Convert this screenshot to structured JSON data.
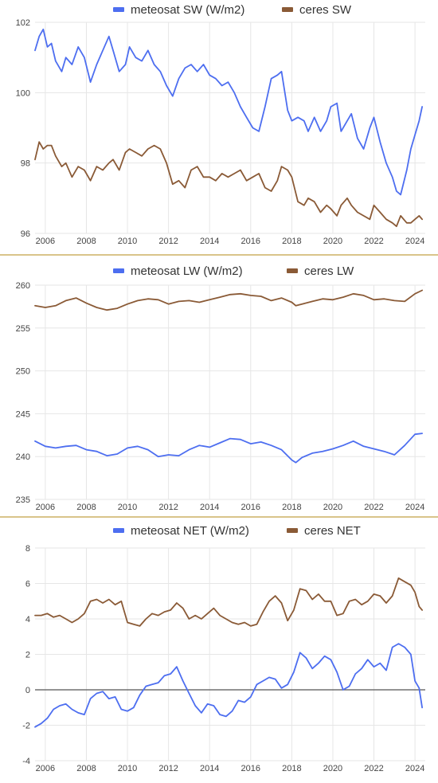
{
  "colors": {
    "meteosat": "#4d6ef0",
    "ceres": "#8a5a36",
    "grid": "#e6e6e6",
    "zero": "#555555",
    "divider": "#d9c48a"
  },
  "chart_data": [
    {
      "type": "line",
      "legend_position": "top",
      "grid": true,
      "xlim": [
        2005.5,
        2024.5
      ],
      "ylim": [
        96,
        102
      ],
      "xticks": [
        "2006",
        "2008",
        "2010",
        "2012",
        "2014",
        "2016",
        "2018",
        "2020",
        "2022",
        "2024"
      ],
      "xtick_values": [
        2006,
        2008,
        2010,
        2012,
        2014,
        2016,
        2018,
        2020,
        2022,
        2024
      ],
      "yticks": [
        "96",
        "98",
        "100",
        "102"
      ],
      "ytick_values": [
        96,
        98,
        100,
        102
      ],
      "series": [
        {
          "name": "meteosat SW (W/m2)",
          "color": "#4d6ef0",
          "x": [
            2005.5,
            2005.7,
            2005.9,
            2006.1,
            2006.3,
            2006.5,
            2006.8,
            2007.0,
            2007.3,
            2007.6,
            2007.9,
            2008.2,
            2008.5,
            2008.8,
            2009.1,
            2009.3,
            2009.6,
            2009.9,
            2010.1,
            2010.4,
            2010.7,
            2011.0,
            2011.3,
            2011.6,
            2011.9,
            2012.2,
            2012.5,
            2012.8,
            2013.1,
            2013.4,
            2013.7,
            2014.0,
            2014.3,
            2014.6,
            2014.9,
            2015.2,
            2015.5,
            2015.8,
            2016.1,
            2016.4,
            2016.7,
            2017.0,
            2017.3,
            2017.5,
            2017.8,
            2018.0,
            2018.3,
            2018.6,
            2018.8,
            2019.1,
            2019.4,
            2019.7,
            2019.9,
            2020.2,
            2020.4,
            2020.7,
            2020.9,
            2021.2,
            2021.5,
            2021.8,
            2022.0,
            2022.3,
            2022.6,
            2022.9,
            2023.1,
            2023.3,
            2023.6,
            2023.8,
            2024.0,
            2024.2,
            2024.35
          ],
          "y": [
            101.2,
            101.6,
            101.8,
            101.3,
            101.4,
            100.9,
            100.6,
            101.0,
            100.8,
            101.3,
            101.0,
            100.3,
            100.8,
            101.2,
            101.6,
            101.2,
            100.6,
            100.8,
            101.3,
            101.0,
            100.9,
            101.2,
            100.8,
            100.6,
            100.2,
            99.9,
            100.4,
            100.7,
            100.8,
            100.6,
            100.8,
            100.5,
            100.4,
            100.2,
            100.3,
            100.0,
            99.6,
            99.3,
            99.0,
            98.9,
            99.6,
            100.4,
            100.5,
            100.6,
            99.5,
            99.2,
            99.3,
            99.2,
            98.9,
            99.3,
            98.9,
            99.2,
            99.6,
            99.7,
            98.9,
            99.2,
            99.4,
            98.7,
            98.4,
            99.0,
            99.3,
            98.6,
            98.0,
            97.6,
            97.2,
            97.1,
            97.8,
            98.4,
            98.8,
            99.2,
            99.6
          ]
        },
        {
          "name": "ceres SW",
          "color": "#8a5a36",
          "x": [
            2005.5,
            2005.7,
            2005.9,
            2006.1,
            2006.3,
            2006.5,
            2006.8,
            2007.0,
            2007.3,
            2007.6,
            2007.9,
            2008.2,
            2008.5,
            2008.8,
            2009.1,
            2009.3,
            2009.6,
            2009.9,
            2010.1,
            2010.4,
            2010.7,
            2011.0,
            2011.3,
            2011.6,
            2011.9,
            2012.2,
            2012.5,
            2012.8,
            2013.1,
            2013.4,
            2013.7,
            2014.0,
            2014.3,
            2014.6,
            2014.9,
            2015.2,
            2015.5,
            2015.8,
            2016.1,
            2016.4,
            2016.7,
            2017.0,
            2017.3,
            2017.5,
            2017.8,
            2018.0,
            2018.3,
            2018.6,
            2018.8,
            2019.1,
            2019.4,
            2019.7,
            2019.9,
            2020.2,
            2020.4,
            2020.7,
            2020.9,
            2021.2,
            2021.5,
            2021.8,
            2022.0,
            2022.3,
            2022.6,
            2022.9,
            2023.1,
            2023.3,
            2023.6,
            2023.8,
            2024.0,
            2024.2,
            2024.35
          ],
          "y": [
            98.1,
            98.6,
            98.4,
            98.5,
            98.5,
            98.2,
            97.9,
            98.0,
            97.6,
            97.9,
            97.8,
            97.5,
            97.9,
            97.8,
            98.0,
            98.1,
            97.8,
            98.3,
            98.4,
            98.3,
            98.2,
            98.4,
            98.5,
            98.4,
            98.0,
            97.4,
            97.5,
            97.3,
            97.8,
            97.9,
            97.6,
            97.6,
            97.5,
            97.7,
            97.6,
            97.7,
            97.8,
            97.5,
            97.6,
            97.7,
            97.3,
            97.2,
            97.5,
            97.9,
            97.8,
            97.6,
            96.9,
            96.8,
            97.0,
            96.9,
            96.6,
            96.8,
            96.7,
            96.5,
            96.8,
            97.0,
            96.8,
            96.6,
            96.5,
            96.4,
            96.8,
            96.6,
            96.4,
            96.3,
            96.2,
            96.5,
            96.3,
            96.3,
            96.4,
            96.5,
            96.4
          ]
        }
      ]
    },
    {
      "type": "line",
      "legend_position": "top",
      "grid": true,
      "xlim": [
        2005.5,
        2024.5
      ],
      "ylim": [
        235,
        260
      ],
      "xticks": [
        "2006",
        "2008",
        "2010",
        "2012",
        "2014",
        "2016",
        "2018",
        "2020",
        "2022",
        "2024"
      ],
      "xtick_values": [
        2006,
        2008,
        2010,
        2012,
        2014,
        2016,
        2018,
        2020,
        2022,
        2024
      ],
      "yticks": [
        "235",
        "240",
        "245",
        "250",
        "255",
        "260"
      ],
      "ytick_values": [
        235,
        240,
        245,
        250,
        255,
        260
      ],
      "series": [
        {
          "name": "meteosat LW (W/m2)",
          "color": "#4d6ef0",
          "x": [
            2005.5,
            2006.0,
            2006.5,
            2007.0,
            2007.5,
            2008.0,
            2008.5,
            2009.0,
            2009.5,
            2010.0,
            2010.5,
            2011.0,
            2011.5,
            2012.0,
            2012.5,
            2013.0,
            2013.5,
            2014.0,
            2014.5,
            2015.0,
            2015.5,
            2016.0,
            2016.5,
            2017.0,
            2017.5,
            2018.0,
            2018.2,
            2018.5,
            2019.0,
            2019.5,
            2020.0,
            2020.5,
            2021.0,
            2021.5,
            2022.0,
            2022.5,
            2023.0,
            2023.5,
            2024.0,
            2024.35
          ],
          "y": [
            241.8,
            241.2,
            241.0,
            241.2,
            241.3,
            240.8,
            240.6,
            240.1,
            240.3,
            241.0,
            241.2,
            240.8,
            240.0,
            240.2,
            240.1,
            240.8,
            241.3,
            241.1,
            241.6,
            242.1,
            242.0,
            241.5,
            241.7,
            241.3,
            240.8,
            239.6,
            239.3,
            239.9,
            240.4,
            240.6,
            240.9,
            241.3,
            241.8,
            241.2,
            240.9,
            240.6,
            240.2,
            241.3,
            242.6,
            242.7
          ]
        },
        {
          "name": "ceres LW",
          "color": "#8a5a36",
          "x": [
            2005.5,
            2006.0,
            2006.5,
            2007.0,
            2007.5,
            2008.0,
            2008.5,
            2009.0,
            2009.5,
            2010.0,
            2010.5,
            2011.0,
            2011.5,
            2012.0,
            2012.5,
            2013.0,
            2013.5,
            2014.0,
            2014.5,
            2015.0,
            2015.5,
            2016.0,
            2016.5,
            2017.0,
            2017.5,
            2018.0,
            2018.2,
            2018.5,
            2019.0,
            2019.5,
            2020.0,
            2020.5,
            2021.0,
            2021.5,
            2022.0,
            2022.5,
            2023.0,
            2023.5,
            2024.0,
            2024.35
          ],
          "y": [
            257.6,
            257.4,
            257.6,
            258.2,
            258.5,
            257.9,
            257.4,
            257.1,
            257.3,
            257.8,
            258.2,
            258.4,
            258.3,
            257.8,
            258.1,
            258.2,
            258.0,
            258.3,
            258.6,
            258.9,
            259.0,
            258.8,
            258.7,
            258.2,
            258.5,
            258.0,
            257.6,
            257.8,
            258.1,
            258.4,
            258.3,
            258.6,
            259.0,
            258.8,
            258.3,
            258.4,
            258.2,
            258.1,
            259.0,
            259.4
          ]
        }
      ]
    },
    {
      "type": "line",
      "legend_position": "top",
      "grid": true,
      "zero_line": true,
      "xlim": [
        2005.5,
        2024.5
      ],
      "ylim": [
        -4,
        8
      ],
      "xticks": [
        "2006",
        "2008",
        "2010",
        "2012",
        "2014",
        "2016",
        "2018",
        "2020",
        "2022",
        "2024"
      ],
      "xtick_values": [
        2006,
        2008,
        2010,
        2012,
        2014,
        2016,
        2018,
        2020,
        2022,
        2024
      ],
      "yticks": [
        "-4",
        "-2",
        "0",
        "2",
        "4",
        "6",
        "8"
      ],
      "ytick_values": [
        -4,
        -2,
        0,
        2,
        4,
        6,
        8
      ],
      "series": [
        {
          "name": "meteosat NET (W/m2)",
          "color": "#4d6ef0",
          "x": [
            2005.5,
            2005.8,
            2006.1,
            2006.4,
            2006.7,
            2007.0,
            2007.3,
            2007.6,
            2007.9,
            2008.2,
            2008.5,
            2008.8,
            2009.1,
            2009.4,
            2009.7,
            2010.0,
            2010.3,
            2010.6,
            2010.9,
            2011.2,
            2011.5,
            2011.8,
            2012.1,
            2012.4,
            2012.7,
            2013.0,
            2013.3,
            2013.6,
            2013.9,
            2014.2,
            2014.5,
            2014.8,
            2015.1,
            2015.4,
            2015.7,
            2016.0,
            2016.3,
            2016.6,
            2016.9,
            2017.2,
            2017.5,
            2017.8,
            2018.1,
            2018.4,
            2018.7,
            2019.0,
            2019.3,
            2019.6,
            2019.9,
            2020.2,
            2020.5,
            2020.8,
            2021.1,
            2021.4,
            2021.7,
            2022.0,
            2022.3,
            2022.6,
            2022.9,
            2023.2,
            2023.5,
            2023.8,
            2024.0,
            2024.2,
            2024.35
          ],
          "y": [
            -2.1,
            -1.9,
            -1.6,
            -1.1,
            -0.9,
            -0.8,
            -1.1,
            -1.3,
            -1.4,
            -0.5,
            -0.2,
            -0.1,
            -0.5,
            -0.4,
            -1.1,
            -1.2,
            -1.0,
            -0.3,
            0.2,
            0.3,
            0.4,
            0.8,
            0.9,
            1.3,
            0.5,
            -0.2,
            -0.9,
            -1.3,
            -0.8,
            -0.9,
            -1.4,
            -1.5,
            -1.2,
            -0.6,
            -0.7,
            -0.4,
            0.3,
            0.5,
            0.7,
            0.6,
            0.1,
            0.3,
            1.0,
            2.1,
            1.8,
            1.2,
            1.5,
            1.9,
            1.7,
            1.0,
            0.0,
            0.2,
            0.9,
            1.2,
            1.7,
            1.3,
            1.5,
            1.1,
            2.4,
            2.6,
            2.4,
            2.0,
            0.5,
            0.1,
            -1.0
          ]
        },
        {
          "name": "ceres NET",
          "color": "#8a5a36",
          "x": [
            2005.5,
            2005.8,
            2006.1,
            2006.4,
            2006.7,
            2007.0,
            2007.3,
            2007.6,
            2007.9,
            2008.2,
            2008.5,
            2008.8,
            2009.1,
            2009.4,
            2009.7,
            2010.0,
            2010.3,
            2010.6,
            2010.9,
            2011.2,
            2011.5,
            2011.8,
            2012.1,
            2012.4,
            2012.7,
            2013.0,
            2013.3,
            2013.6,
            2013.9,
            2014.2,
            2014.5,
            2014.8,
            2015.1,
            2015.4,
            2015.7,
            2016.0,
            2016.3,
            2016.6,
            2016.9,
            2017.2,
            2017.5,
            2017.8,
            2018.1,
            2018.4,
            2018.7,
            2019.0,
            2019.3,
            2019.6,
            2019.9,
            2020.2,
            2020.5,
            2020.8,
            2021.1,
            2021.4,
            2021.7,
            2022.0,
            2022.3,
            2022.6,
            2022.9,
            2023.2,
            2023.5,
            2023.8,
            2024.0,
            2024.2,
            2024.35
          ],
          "y": [
            4.2,
            4.2,
            4.3,
            4.1,
            4.2,
            4.0,
            3.8,
            4.0,
            4.3,
            5.0,
            5.1,
            4.9,
            5.1,
            4.8,
            5.0,
            3.8,
            3.7,
            3.6,
            4.0,
            4.3,
            4.2,
            4.4,
            4.5,
            4.9,
            4.6,
            4.0,
            4.2,
            4.0,
            4.3,
            4.6,
            4.2,
            4.0,
            3.8,
            3.7,
            3.8,
            3.6,
            3.7,
            4.4,
            5.0,
            5.3,
            4.9,
            3.9,
            4.5,
            5.7,
            5.6,
            5.1,
            5.4,
            5.0,
            5.0,
            4.2,
            4.3,
            5.0,
            5.1,
            4.8,
            5.0,
            5.4,
            5.3,
            4.9,
            5.3,
            6.3,
            6.1,
            5.9,
            5.5,
            4.7,
            4.5
          ]
        }
      ]
    }
  ]
}
